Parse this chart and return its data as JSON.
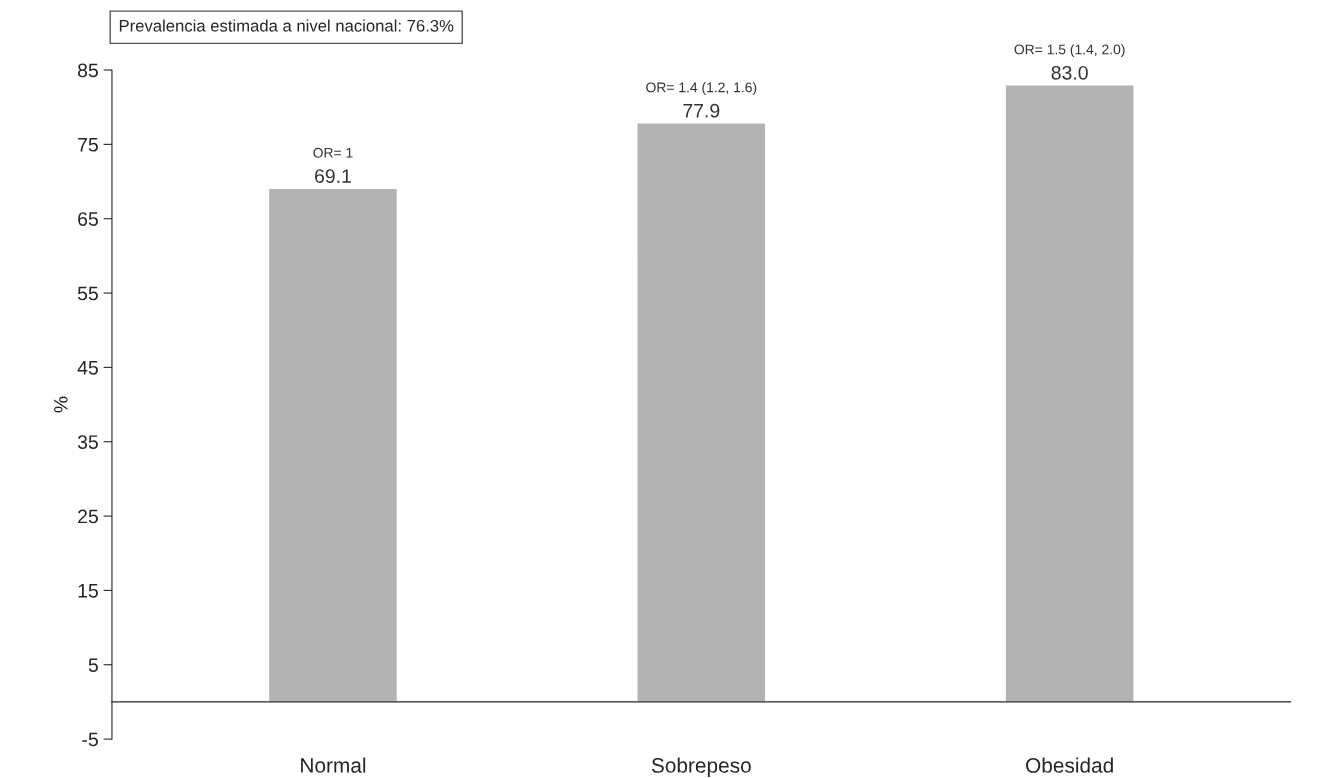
{
  "chart_data": {
    "type": "bar",
    "categories": [
      "Normal",
      "Sobrepeso",
      "Obesidad"
    ],
    "values": [
      69.1,
      77.9,
      83.0
    ],
    "value_labels": [
      "69.1",
      "77.9",
      "83.0"
    ],
    "color": "#b3b3b3",
    "ylabel": "%",
    "ylim": [
      -5,
      85
    ],
    "yticks": [
      -5,
      5,
      15,
      25,
      35,
      45,
      55,
      65,
      75,
      85
    ],
    "grid": false,
    "legend": false,
    "annotations": [
      "Prevalencia estimada a nivel nacional: 76.3%",
      {
        "text": "OR= 1",
        "x": "Normal",
        "y": 69.1
      },
      {
        "text": "OR= 1.4 (1.2, 1.6)",
        "x": "Sobrepeso",
        "y": 77.9
      },
      {
        "text": "OR= 1.5 (1.4, 2.0)",
        "x": "Obesidad",
        "y": 83.0
      }
    ]
  }
}
